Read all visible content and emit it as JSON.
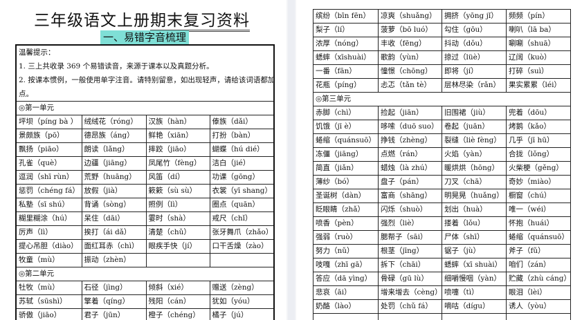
{
  "document": {
    "title_plain": "三年级语文上册",
    "title_underlined": "期末复习资料",
    "section_heading": "一、易错字音梳理",
    "tips": [
      "温馨提示：",
      "1. 三上共收录 369 个易错读音，来源于课本以及真题分析。",
      "2. 按课本惯例，一般使用单字注音。请特别留意，如出现轻声，请给该词语都加",
      "点。"
    ]
  },
  "left_sections": [
    {
      "unit": "◎第一单元",
      "rows": [
        [
          "坪坝（píng bà ）",
          "绒绒花（róng）",
          "汉族（hàn）",
          "傣族（dǎi）"
        ],
        [
          "景颇族（pō）",
          "德昂族（áng）",
          "鲜艳（xiān）",
          "打扮（bàn）"
        ],
        [
          "飘扬（piāo）",
          "朗读（lǎng）",
          "摔跤（jiāo）",
          "蝴蝶（hú dié）"
        ],
        [
          "孔雀（què）",
          "边疆（jiāng）",
          "凤尾竹（fèng）",
          "洁白（jié）"
        ],
        [
          "逗润（shī rùn）",
          "荒野（huāng）",
          "风笛（dí）",
          "功课（gōng）"
        ],
        [
          "惩罚（chéng fá）",
          "放假（jià）",
          "簌簌（sù sù）",
          "衣裳（yī shang）"
        ],
        [
          "私塾（sī shú）",
          "背诵（sòng）",
          "照例（lì）",
          "圈点（quān）"
        ],
        [
          "糊里糊涂（hú）",
          "呆住（dāi）",
          "霎时（shà）",
          "戒尺（chǐ）"
        ],
        [
          "厉声（lì）",
          "挨打（ái dǎ）",
          "清楚（chǔ）",
          "张牙舞爪（zhǎo）"
        ],
        [
          "提心吊胆（diào）",
          "面红耳赤（chì）",
          "眼疾手快（jí）",
          "口干舌燥（zào）"
        ],
        [
          "牧童（mù）",
          "振动（zhèn）",
          "",
          ""
        ]
      ]
    },
    {
      "unit": "◎第二单元",
      "rows": [
        [
          "牡牧（mù）",
          "石径（jìng）",
          "倾斜（xié）",
          "赠送（zèng）"
        ],
        [
          "苏轼（sūshì）",
          "擎着（qíng）",
          "残阳（cán）",
          "犹如（yóu）"
        ],
        [
          "骄傲（jiāo）",
          "君子（jūn）",
          "橙子（chéng）",
          "橘子（jú）"
        ]
      ]
    }
  ],
  "right_sections": [
    {
      "unit": "",
      "rows": [
        [
          "缤纷（bīn fēn）",
          "凉爽（shuǎng）",
          "拥挤（yōng jǐ）",
          "频频（pín）"
        ],
        [
          "梨子（lí）",
          "菠萝（bō luó）",
          "勾住（gōu）",
          "喇叭（lā ba）"
        ],
        [
          "浓厚（nóng）",
          "丰收（fēng）",
          "抖动（dǒu）",
          "唰唰（shuā）"
        ],
        [
          "蟋蟀（xīshuài）",
          "歌韵（yùn）",
          "掠过（lüè）",
          "辽阔（kuò）"
        ],
        [
          "一番（fān）",
          "憧憬（chōng）",
          "即将（jí）",
          "打碎（suì）"
        ],
        [
          "花瓶（píng）",
          "忐忑（tǎn tè）",
          "层林尽染（rǎn）",
          "果实累累（léi）"
        ]
      ]
    },
    {
      "unit": "◎第三单元",
      "rows": [
        [
          "赤脚（chì）",
          "捡起（jiān）",
          "旧围裙（jiù）",
          "兜着（dōu）"
        ],
        [
          "饥饿（jī è）",
          "哆嗦（duō suo）",
          "卷起（juān）",
          "烤鹅（kǎo）"
        ],
        [
          "蜷缩（quánsuō）",
          "挣钱（zhèng）",
          "裂缝（liè fèng）",
          "几乎（jī hū）"
        ],
        [
          "冻僵（jiāng）",
          "点燃（rán）",
          "火焰（yàn）",
          "合拢（lǒng）"
        ],
        [
          "简直（jiǎn）",
          "蜡烛（là zhú）",
          "暖烘烘（hōng）",
          "火柴梗（gěng）"
        ],
        [
          "薄纱（bó）",
          "盘子（pán）",
          "刀叉（chā）",
          "奇妙（miào）"
        ],
        [
          "圣诞树（dàn）",
          "富商（shāng）",
          "明晃晃（huǎng）",
          "橱窗（chú）"
        ],
        [
          "眨眼睛（zhǎ）",
          "闪烁（shuò）",
          "划出（huà）",
          "唯一（wéi）"
        ],
        [
          "喷香（pèn）",
          "强烈（liè）",
          "搂着（lǒu）",
          "怀抱（huái）"
        ],
        [
          "强弱（ruò）",
          "腮帮子（sāi）",
          "尸体（shī）",
          "蜷缩（quánsuō）"
        ],
        [
          "努力（nǔ）",
          "根茎（jīng）",
          "锯子（jù）",
          "斧子（fǔ）"
        ],
        [
          "吱嘎（zhī gā）",
          "拆下（chāi）",
          "蟋蟀（xī shuài）",
          "咱们（zán）"
        ],
        [
          "答应（dā yìng）",
          "骨碌（gū lù）",
          "细嚼慢咽（yàn）",
          "贮藏（zhù cáng）"
        ],
        [
          "悲哀（āi）",
          "增来增去（cèng）",
          "喷嚏（tì）",
          "眼泪（lèi）"
        ],
        [
          "奶酪（lào）",
          "处罚（chǔ fá）",
          "嘀咕（dígu）",
          "诱人（yòu）"
        ],
        [
          "",
          "",
          "",
          ""
        ]
      ]
    }
  ]
}
